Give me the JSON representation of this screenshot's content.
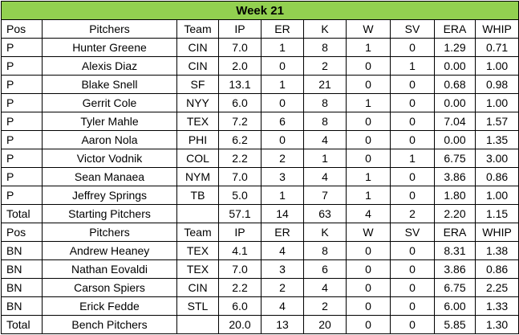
{
  "title": "Week 21",
  "accent_color": "#92d050",
  "headers": [
    "Pos",
    "Pitchers",
    "Team",
    "IP",
    "ER",
    "K",
    "W",
    "SV",
    "ERA",
    "WHIP"
  ],
  "starters": [
    [
      "P",
      "Hunter Greene",
      "CIN",
      "7.0",
      "1",
      "8",
      "1",
      "0",
      "1.29",
      "0.71"
    ],
    [
      "P",
      "Alexis Diaz",
      "CIN",
      "2.0",
      "0",
      "2",
      "0",
      "1",
      "0.00",
      "1.00"
    ],
    [
      "P",
      "Blake Snell",
      "SF",
      "13.1",
      "1",
      "21",
      "0",
      "0",
      "0.68",
      "0.98"
    ],
    [
      "P",
      "Gerrit Cole",
      "NYY",
      "6.0",
      "0",
      "8",
      "1",
      "0",
      "0.00",
      "1.00"
    ],
    [
      "P",
      "Tyler Mahle",
      "TEX",
      "7.2",
      "6",
      "8",
      "0",
      "0",
      "7.04",
      "1.57"
    ],
    [
      "P",
      "Aaron Nola",
      "PHI",
      "6.2",
      "0",
      "4",
      "0",
      "0",
      "0.00",
      "1.35"
    ],
    [
      "P",
      "Victor Vodnik",
      "COL",
      "2.2",
      "2",
      "1",
      "0",
      "1",
      "6.75",
      "3.00"
    ],
    [
      "P",
      "Sean Manaea",
      "NYM",
      "7.0",
      "3",
      "4",
      "1",
      "0",
      "3.86",
      "0.86"
    ],
    [
      "P",
      "Jeffrey Springs",
      "TB",
      "5.0",
      "1",
      "7",
      "1",
      "0",
      "1.80",
      "1.00"
    ]
  ],
  "starters_total": [
    "Total",
    "Starting Pitchers",
    "",
    "57.1",
    "14",
    "63",
    "4",
    "2",
    "2.20",
    "1.15"
  ],
  "bench": [
    [
      "BN",
      "Andrew Heaney",
      "TEX",
      "4.1",
      "4",
      "8",
      "0",
      "0",
      "8.31",
      "1.38"
    ],
    [
      "BN",
      "Nathan Eovaldi",
      "TEX",
      "7.0",
      "3",
      "6",
      "0",
      "0",
      "3.86",
      "0.86"
    ],
    [
      "BN",
      "Carson Spiers",
      "CIN",
      "2.2",
      "2",
      "4",
      "0",
      "0",
      "6.75",
      "2.25"
    ],
    [
      "BN",
      "Erick Fedde",
      "STL",
      "6.0",
      "4",
      "2",
      "0",
      "0",
      "6.00",
      "1.33"
    ]
  ],
  "bench_total": [
    "Total",
    "Bench Pitchers",
    "",
    "20.0",
    "13",
    "20",
    "0",
    "0",
    "5.85",
    "1.30"
  ]
}
